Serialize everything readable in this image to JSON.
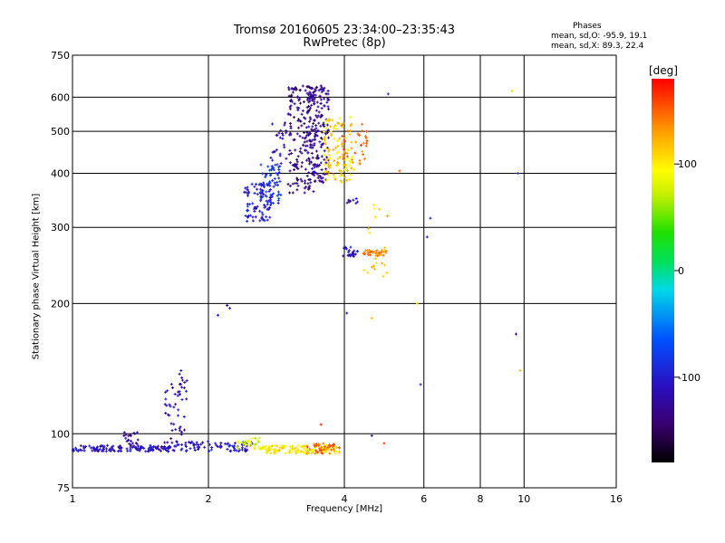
{
  "chart_data": {
    "type": "scatter",
    "title": "Tromsø 20160605 23:34:00–23:35:43",
    "subtitle": "RwPretec (8p)",
    "xlabel": "Frequency [MHz]",
    "ylabel": "Stationary phase Virtual Height [km]",
    "x_scale": "log",
    "y_scale": "log",
    "xlim": [
      1,
      16
    ],
    "ylim": [
      75,
      750
    ],
    "x_ticks": [
      1,
      2,
      4,
      6,
      8,
      10,
      16
    ],
    "x_tick_labels": [
      "1",
      "2",
      "4",
      "6",
      "8",
      "10",
      "16"
    ],
    "y_ticks": [
      75,
      100,
      200,
      300,
      400,
      500,
      600,
      750
    ],
    "y_tick_labels": [
      "75",
      "100",
      "200",
      "300",
      "400",
      "500",
      "600",
      "750"
    ],
    "grid": true,
    "colorbar": {
      "label": "[deg]",
      "range": [
        -180,
        180
      ],
      "ticks": [
        100,
        0,
        -100
      ],
      "tick_labels": [
        "100",
        "0",
        "-100"
      ]
    },
    "phases_box": {
      "title": "Phases",
      "line_o": "mean, sd,O: -95.9, 19.1",
      "line_x": "mean, sd,X: 89.3, 22.4"
    },
    "clusters": [
      {
        "f_min": 1.0,
        "f_max": 1.65,
        "h_min": 91,
        "h_max": 94,
        "n": 140,
        "phase": -110
      },
      {
        "f_min": 1.3,
        "f_max": 1.4,
        "h_min": 93,
        "h_max": 101,
        "n": 20,
        "phase": -125
      },
      {
        "f_min": 1.62,
        "f_max": 2.5,
        "h_min": 91,
        "h_max": 96,
        "n": 90,
        "phase": -108
      },
      {
        "f_min": 1.6,
        "f_max": 1.8,
        "h_min": 95,
        "h_max": 135,
        "n": 40,
        "phase": -115
      },
      {
        "f_min": 1.72,
        "f_max": 1.8,
        "h_min": 120,
        "h_max": 140,
        "n": 10,
        "phase": -112
      },
      {
        "f_min": 2.3,
        "f_max": 2.6,
        "h_min": 92,
        "h_max": 98,
        "n": 25,
        "phase": 80
      },
      {
        "f_min": 2.6,
        "f_max": 3.9,
        "h_min": 90,
        "h_max": 94,
        "n": 130,
        "phase": 100
      },
      {
        "f_min": 3.3,
        "f_max": 3.9,
        "h_min": 90,
        "h_max": 95,
        "n": 40,
        "phase": 150
      },
      {
        "f_min": 2.4,
        "f_max": 2.75,
        "h_min": 310,
        "h_max": 380,
        "n": 80,
        "phase": -100
      },
      {
        "f_min": 2.6,
        "f_max": 2.9,
        "h_min": 340,
        "h_max": 420,
        "n": 70,
        "phase": -85
      },
      {
        "f_min": 2.75,
        "f_max": 3.0,
        "h_min": 420,
        "h_max": 540,
        "n": 25,
        "phase": -115
      },
      {
        "f_min": 3.0,
        "f_max": 3.45,
        "h_min": 360,
        "h_max": 640,
        "n": 180,
        "phase": -135
      },
      {
        "f_min": 3.3,
        "f_max": 3.7,
        "h_min": 380,
        "h_max": 640,
        "n": 160,
        "phase": -125
      },
      {
        "f_min": 3.6,
        "f_max": 4.2,
        "h_min": 380,
        "h_max": 540,
        "n": 110,
        "phase": 110
      },
      {
        "f_min": 3.9,
        "f_max": 4.5,
        "h_min": 420,
        "h_max": 520,
        "n": 35,
        "phase": 145
      },
      {
        "f_min": 3.95,
        "f_max": 4.3,
        "h_min": 255,
        "h_max": 270,
        "n": 25,
        "phase": -110
      },
      {
        "f_min": 4.4,
        "f_max": 4.95,
        "h_min": 258,
        "h_max": 266,
        "n": 35,
        "phase": 140
      },
      {
        "f_min": 4.4,
        "f_max": 5.0,
        "h_min": 230,
        "h_max": 340,
        "n": 20,
        "phase": 110
      },
      {
        "f_min": 4.0,
        "f_max": 4.3,
        "h_min": 340,
        "h_max": 350,
        "n": 8,
        "phase": -120
      }
    ],
    "isolated_points": [
      {
        "f": 2.2,
        "h": 198,
        "phase": -120
      },
      {
        "f": 2.23,
        "h": 195,
        "phase": -115
      },
      {
        "f": 2.1,
        "h": 188,
        "phase": -110
      },
      {
        "f": 4.05,
        "h": 190,
        "phase": -110
      },
      {
        "f": 4.6,
        "h": 185,
        "phase": 120
      },
      {
        "f": 5.0,
        "h": 610,
        "phase": -90
      },
      {
        "f": 5.9,
        "h": 130,
        "phase": -90
      },
      {
        "f": 6.1,
        "h": 285,
        "phase": -100
      },
      {
        "f": 6.2,
        "h": 315,
        "phase": -95
      },
      {
        "f": 9.4,
        "h": 620,
        "phase": 110
      },
      {
        "f": 9.6,
        "h": 170,
        "phase": -130
      },
      {
        "f": 9.8,
        "h": 140,
        "phase": 120
      },
      {
        "f": 9.7,
        "h": 400,
        "phase": -90
      },
      {
        "f": 3.55,
        "h": 105,
        "phase": 170
      },
      {
        "f": 4.6,
        "h": 99,
        "phase": -110
      },
      {
        "f": 4.9,
        "h": 95,
        "phase": 160
      },
      {
        "f": 5.3,
        "h": 405,
        "phase": 150
      },
      {
        "f": 5.8,
        "h": 200,
        "phase": 115
      }
    ]
  }
}
